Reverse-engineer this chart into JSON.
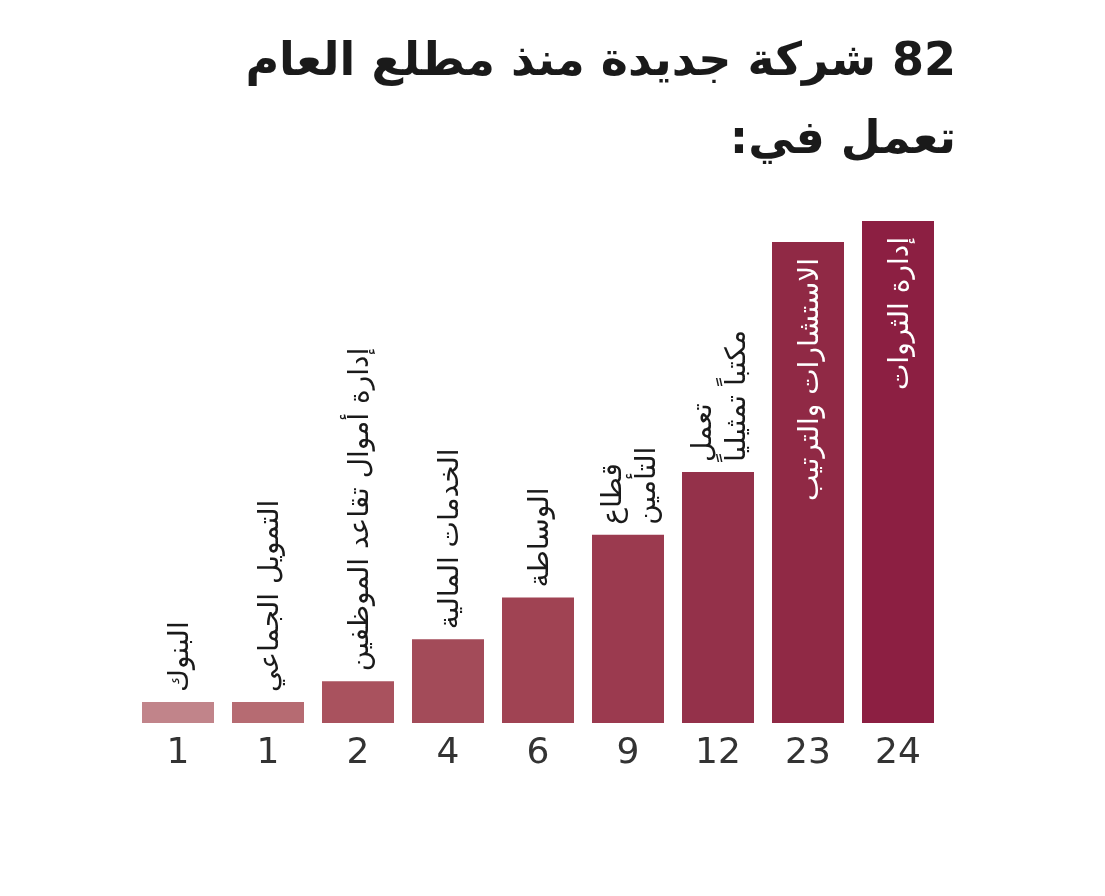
{
  "chart_data": {
    "type": "bar",
    "title": "82 شركة جديدة منذ مطلع العام تعمل في:",
    "categories": [
      "البنوك",
      "التمويل الجماعي",
      "إدارة أموال تقاعد الموظفين",
      "الخدمات المالية",
      "الوساطة",
      "قطاع\nالتأمين",
      "تعمل\nمكتباً تمثيلياً",
      "الاستشارات والترتيب",
      "إدارة الثروات"
    ],
    "values": [
      1,
      1,
      2,
      4,
      6,
      9,
      12,
      23,
      24
    ],
    "colors": [
      "#c1848a",
      "#b66b72",
      "#a9525e",
      "#a34b59",
      "#a04353",
      "#9b3a4f",
      "#94314a",
      "#902945",
      "#8c1f42"
    ],
    "data_labels": true
  }
}
